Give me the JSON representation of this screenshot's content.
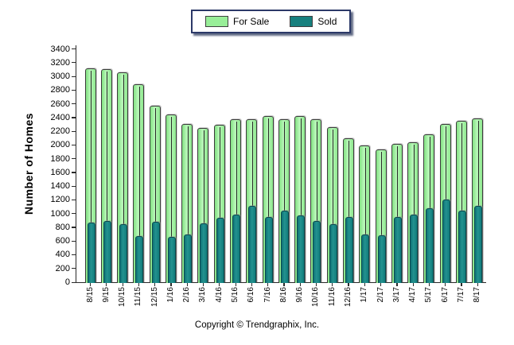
{
  "footer": {
    "copyright": "Copyright © Trendgraphix, Inc."
  },
  "chart_data": {
    "type": "bar",
    "title": "",
    "xlabel": "",
    "ylabel": "Number of Homes",
    "ylim": [
      0,
      3400
    ],
    "ytick_step": 200,
    "yticks": [
      0,
      200,
      400,
      600,
      800,
      1000,
      1200,
      1400,
      1600,
      1800,
      2000,
      2200,
      2400,
      2600,
      2800,
      3000,
      3200,
      3400
    ],
    "grid": false,
    "legend_position": "top-center",
    "categories": [
      "8/15",
      "9/15",
      "10/15",
      "11/15",
      "12/15",
      "1/16",
      "2/16",
      "3/16",
      "4/16",
      "5/16",
      "6/16",
      "7/16",
      "8/16",
      "9/16",
      "10/16",
      "11/16",
      "12/16",
      "1/17",
      "2/17",
      "3/17",
      "4/17",
      "5/17",
      "6/17",
      "7/17",
      "8/17"
    ],
    "series": [
      {
        "name": "For Sale",
        "color": "#98ee98",
        "values": [
          3120,
          3100,
          3060,
          2880,
          2570,
          2440,
          2300,
          2250,
          2290,
          2370,
          2380,
          2420,
          2370,
          2420,
          2380,
          2260,
          2100,
          1990,
          1940,
          2020,
          2040,
          2150,
          2300,
          2350,
          2390
        ]
      },
      {
        "name": "Sold",
        "color": "#17807e",
        "values": [
          870,
          890,
          840,
          670,
          880,
          660,
          690,
          860,
          940,
          990,
          1110,
          950,
          1040,
          970,
          890,
          840,
          950,
          690,
          680,
          950,
          980,
          1080,
          1210,
          1040,
          1110
        ]
      }
    ]
  }
}
